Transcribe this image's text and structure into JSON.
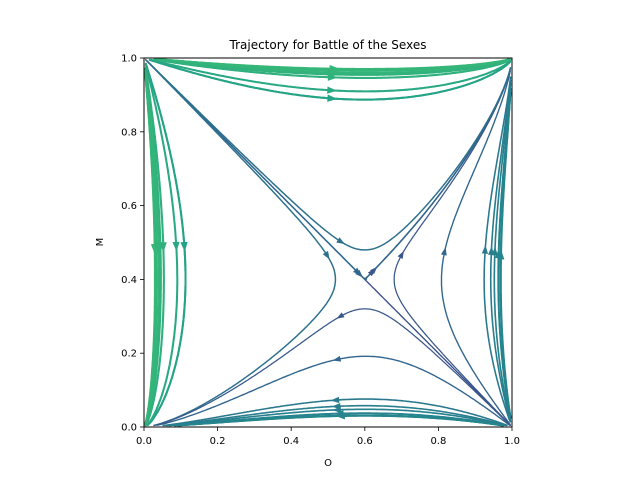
{
  "chart_data": {
    "type": "streamplot",
    "title": "Trajectory for Battle of the Sexes",
    "xlabel": "O",
    "ylabel": "M",
    "xlim": [
      0.0,
      1.0
    ],
    "ylim": [
      0.0,
      1.0
    ],
    "xticks": [
      "0.0",
      "0.2",
      "0.4",
      "0.6",
      "0.8",
      "1.0"
    ],
    "yticks": [
      "0.0",
      "0.2",
      "0.4",
      "0.6",
      "0.8",
      "1.0"
    ],
    "grid": false,
    "legend": "none",
    "colormap": "viridis",
    "colors": {
      "low": "#440154",
      "mid": "#21918c",
      "high": "#fde725"
    },
    "vector_field": {
      "dx": "x*(1-x)*(3*y - 2*(1-y))",
      "dy": "y*(1-y)*(2*x - 3*(1-x))",
      "saddle": [
        0.6,
        0.4
      ],
      "color_by": "speed"
    }
  }
}
